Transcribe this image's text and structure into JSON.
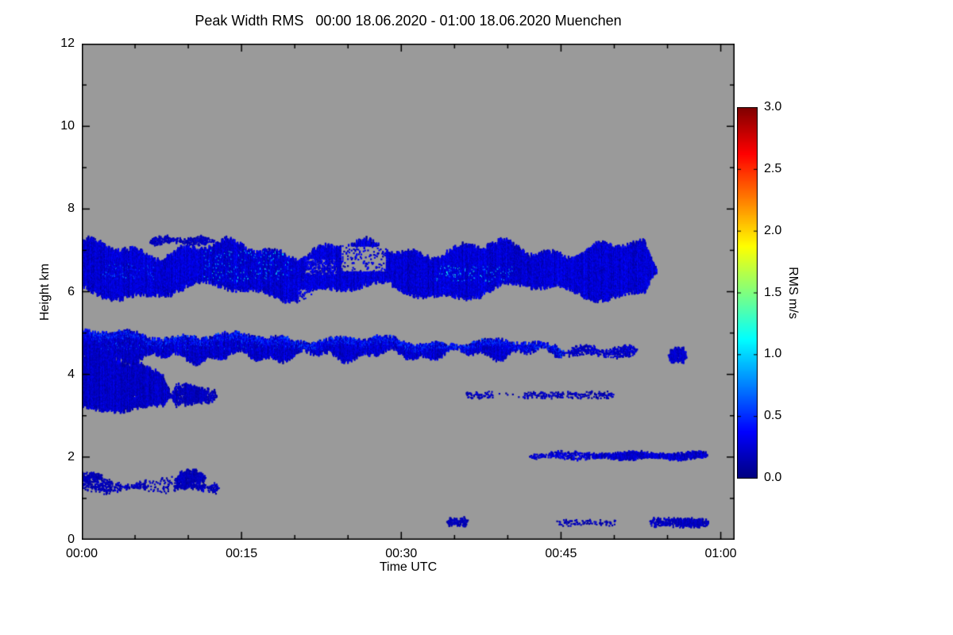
{
  "page": {
    "background": "#ffffff"
  },
  "chart_data": {
    "type": "heatmap",
    "title": "Peak Width RMS   00:00 18.06.2020 - 01:00 18.06.2020 Muenchen",
    "xlabel": "Time UTC",
    "ylabel": "Height km",
    "plot_background": "#9a9a9a",
    "axis_color": "#000000",
    "x_axis": {
      "tick_labels": [
        "00:00",
        "00:15",
        "00:30",
        "00:45",
        "01:00"
      ],
      "tick_minutes": [
        0,
        15,
        30,
        45,
        60
      ],
      "minor_tick_step": 5,
      "t_max_minutes": 61.3
    },
    "y_axis": {
      "tick_labels": [
        "0",
        "2",
        "4",
        "6",
        "8",
        "10",
        "12"
      ],
      "tick_values": [
        0,
        2,
        4,
        6,
        8,
        10,
        12
      ],
      "minor_tick_step": 1,
      "range_km": [
        0,
        12
      ]
    },
    "colorbar": {
      "label": "RMS m/s",
      "tick_labels": [
        "0.0",
        "0.5",
        "1.0",
        "1.5",
        "2.0",
        "2.5",
        "3.0"
      ],
      "tick_values": [
        0,
        0.5,
        1,
        1.5,
        2,
        2.5,
        3
      ],
      "range": [
        0,
        3
      ],
      "colormap": "jet"
    },
    "bands": [
      {
        "id": "upper-cloud-layer-6-7km",
        "t": [
          0,
          54
        ],
        "top": {
          "base": 7.02,
          "amp1": 0.16,
          "w1": 0.5,
          "p1": 1.2,
          "amp2": 0.1,
          "w2": 1.45,
          "p2": 0.4
        },
        "bottom": {
          "base": 6.03,
          "amp1": 0.17,
          "w1": 0.42,
          "p1": 2.8,
          "amp2": 0.08,
          "w2": 1.1,
          "p2": 1.9
        },
        "density": 0.95,
        "value": 0.22,
        "value_noise": 0.16,
        "edge_noise": 0.07,
        "taper": 1.2,
        "holes": [
          {
            "t": [
              24.3,
              28.6
            ],
            "h": [
              6.48,
              7.1
            ],
            "prob": 0.92
          },
          {
            "t": [
              20.3,
              23.2
            ],
            "h": [
              5.6,
              6.08
            ],
            "prob": 0.75
          },
          {
            "t": [
              21.0,
              24.0
            ],
            "h": [
              6.4,
              6.8
            ],
            "prob": 0.6
          }
        ],
        "speckles": [
          {
            "t": [
              11.5,
              20
            ],
            "h": [
              6.25,
              7.0
            ],
            "value": 1.05,
            "prob": 0.05
          },
          {
            "t": [
              33,
              40.5
            ],
            "h": [
              6.25,
              6.62
            ],
            "value": 1.1,
            "prob": 0.05
          },
          {
            "t": [
              2,
              7
            ],
            "h": [
              6.3,
              6.7
            ],
            "value": 0.7,
            "prob": 0.04
          }
        ]
      },
      {
        "id": "upper-wisp-7.2km",
        "t": [
          6.3,
          12.6
        ],
        "top": {
          "base": 7.3,
          "amp1": 0.04,
          "w1": 1.8,
          "p1": 0.3
        },
        "bottom": {
          "base": 7.18,
          "amp1": 0.03,
          "w1": 1.5,
          "p1": 1.2
        },
        "density": 0.55,
        "value": 0.16,
        "value_noise": 0.1,
        "edge_noise": 0.04,
        "taper": 0.5
      },
      {
        "id": "mid-cloud-layer-4-5km",
        "t": [
          0,
          45.5
        ],
        "top": {
          "base": 4.98,
          "slope": -0.006,
          "amp1": 0.07,
          "w1": 0.5,
          "p1": 0.5,
          "amp2": 0.05,
          "w2": 1.3,
          "p2": 2.0
        },
        "bottom": {
          "base": 4.4,
          "slope": 0.003,
          "amp1": 0.1,
          "w1": 0.9,
          "p1": 1.0,
          "amp2": 0.07,
          "w2": 2.2,
          "p2": 0.3
        },
        "density": 0.96,
        "value": 0.2,
        "value_noise": 0.15,
        "edge_noise": 0.06,
        "taper": 0.8,
        "top_bright": {
          "depth": 0.14,
          "value": 0.5,
          "prob": 0.4
        },
        "speckles": [
          {
            "t": [
              1,
              22
            ],
            "h": [
              4.6,
              5.05
            ],
            "value": 0.55,
            "prob": 0.05
          }
        ]
      },
      {
        "id": "mid-layer-tail-4.5km",
        "t": [
          45.5,
          52.2
        ],
        "top": {
          "base": 4.64,
          "amp1": 0.05,
          "w1": 1.5,
          "p1": 0
        },
        "bottom": {
          "base": 4.47,
          "amp1": 0.04,
          "w1": 1.2,
          "p1": 1.0
        },
        "density": 0.5,
        "value": 0.18,
        "value_noise": 0.12,
        "edge_noise": 0.05,
        "taper": 0.4
      },
      {
        "id": "detached-blob-4.5km",
        "t": [
          55.1,
          56.8
        ],
        "top": {
          "base": 4.62
        },
        "bottom": {
          "base": 4.3
        },
        "density": 0.85,
        "value": 0.2,
        "value_noise": 0.12,
        "edge_noise": 0.06,
        "taper": 0.3
      },
      {
        "id": "left-lower-cloud-3-4.5km",
        "t": [
          0,
          8.4
        ],
        "top": {
          "base": 4.72,
          "slope": -0.1,
          "amp1": 0.08,
          "w1": 1.2,
          "p1": 0.5
        },
        "bottom": {
          "base": 3.2,
          "amp1": 0.08,
          "w1": 0.8,
          "p1": 2.2
        },
        "density": 0.93,
        "value": 0.18,
        "value_noise": 0.14,
        "edge_noise": 0.07,
        "taper": 0.7
      },
      {
        "id": "lower-wisp-3.5km",
        "t": [
          8.4,
          12.7
        ],
        "top": {
          "base": 3.68,
          "amp1": 0.06,
          "w1": 1.5,
          "p1": 0
        },
        "bottom": {
          "base": 3.3,
          "amp1": 0.05,
          "w1": 1.1,
          "p1": 1.5
        },
        "density": 0.55,
        "value": 0.16,
        "value_noise": 0.1,
        "edge_noise": 0.06,
        "taper": 0.4,
        "dense": [
          {
            "t": [
              9.6,
              11.7
            ],
            "add": 0.35
          }
        ]
      },
      {
        "id": "dotted-row-3.5km",
        "t": [
          36,
          50
        ],
        "top": {
          "base": 3.57
        },
        "bottom": {
          "base": 3.44
        },
        "density": 0.22,
        "value": 0.15,
        "value_noise": 0.1,
        "edge_noise": 0.03,
        "taper": 0.2,
        "holes": [
          {
            "t": [
              38.6,
              41.4
            ],
            "h": [
              3.3,
              3.7
            ],
            "prob": 0.85
          }
        ]
      },
      {
        "id": "line-2km",
        "t": [
          42,
          58.8
        ],
        "top": {
          "base": 2.1,
          "amp1": 0.03,
          "w1": 1.0,
          "p1": 0
        },
        "bottom": {
          "base": 1.97,
          "amp1": 0.03,
          "w1": 1.3,
          "p1": 1.1
        },
        "density": 0.4,
        "value": 0.2,
        "value_noise": 0.16,
        "edge_noise": 0.03,
        "taper": 0.3,
        "dense": [
          {
            "t": [
              48,
              58.8
            ],
            "add": 0.5
          }
        ]
      },
      {
        "id": "wisps-1.3km",
        "t": [
          0,
          12.9
        ],
        "top": {
          "base": 1.42,
          "amp1": 0.1,
          "w1": 0.9,
          "p1": 0.8
        },
        "bottom": {
          "base": 1.21,
          "amp1": 0.06,
          "w1": 1.2,
          "p1": 2.0
        },
        "density": 0.38,
        "value": 0.15,
        "value_noise": 0.1,
        "edge_noise": 0.05,
        "taper": 0.3,
        "holes": [
          {
            "t": [
              6.2,
              8.7
            ],
            "h": [
              0,
              3
            ],
            "prob": 0.7
          }
        ],
        "dense": [
          {
            "t": [
              8.9,
              11.6
            ],
            "add": 0.45
          }
        ]
      },
      {
        "id": "clump-1.5km",
        "t": [
          8.9,
          11.7
        ],
        "top": {
          "base": 1.64,
          "amp1": 0.05,
          "w1": 2.0,
          "p1": 0
        },
        "bottom": {
          "base": 1.4
        },
        "density": 0.75,
        "value": 0.16,
        "value_noise": 0.1,
        "edge_noise": 0.05,
        "taper": 0.3
      },
      {
        "id": "specks-1.55km",
        "t": [
          0,
          1.9
        ],
        "top": {
          "base": 1.62
        },
        "bottom": {
          "base": 1.48
        },
        "density": 0.5,
        "value": 0.15,
        "value_noise": 0.08,
        "edge_noise": 0.04,
        "taper": 0.2
      },
      {
        "id": "dots-0.4km-a",
        "t": [
          34.3,
          36.3
        ],
        "top": {
          "base": 0.52
        },
        "bottom": {
          "base": 0.35
        },
        "density": 0.5,
        "value": 0.15,
        "value_noise": 0.08,
        "edge_noise": 0.04,
        "taper": 0.2
      },
      {
        "id": "dots-0.4km-b",
        "t": [
          44.5,
          50.2
        ],
        "top": {
          "base": 0.48
        },
        "bottom": {
          "base": 0.36
        },
        "density": 0.18,
        "value": 0.14,
        "value_noise": 0.08,
        "edge_noise": 0.03,
        "taper": 0.2
      },
      {
        "id": "dots-0.4km-c",
        "t": [
          53.3,
          58.9
        ],
        "top": {
          "base": 0.5
        },
        "bottom": {
          "base": 0.33
        },
        "density": 0.5,
        "value": 0.16,
        "value_noise": 0.1,
        "edge_noise": 0.04,
        "taper": 0.2,
        "dense": [
          {
            "t": [
              56.2,
              58.3
            ],
            "add": 0.35
          }
        ]
      }
    ]
  }
}
